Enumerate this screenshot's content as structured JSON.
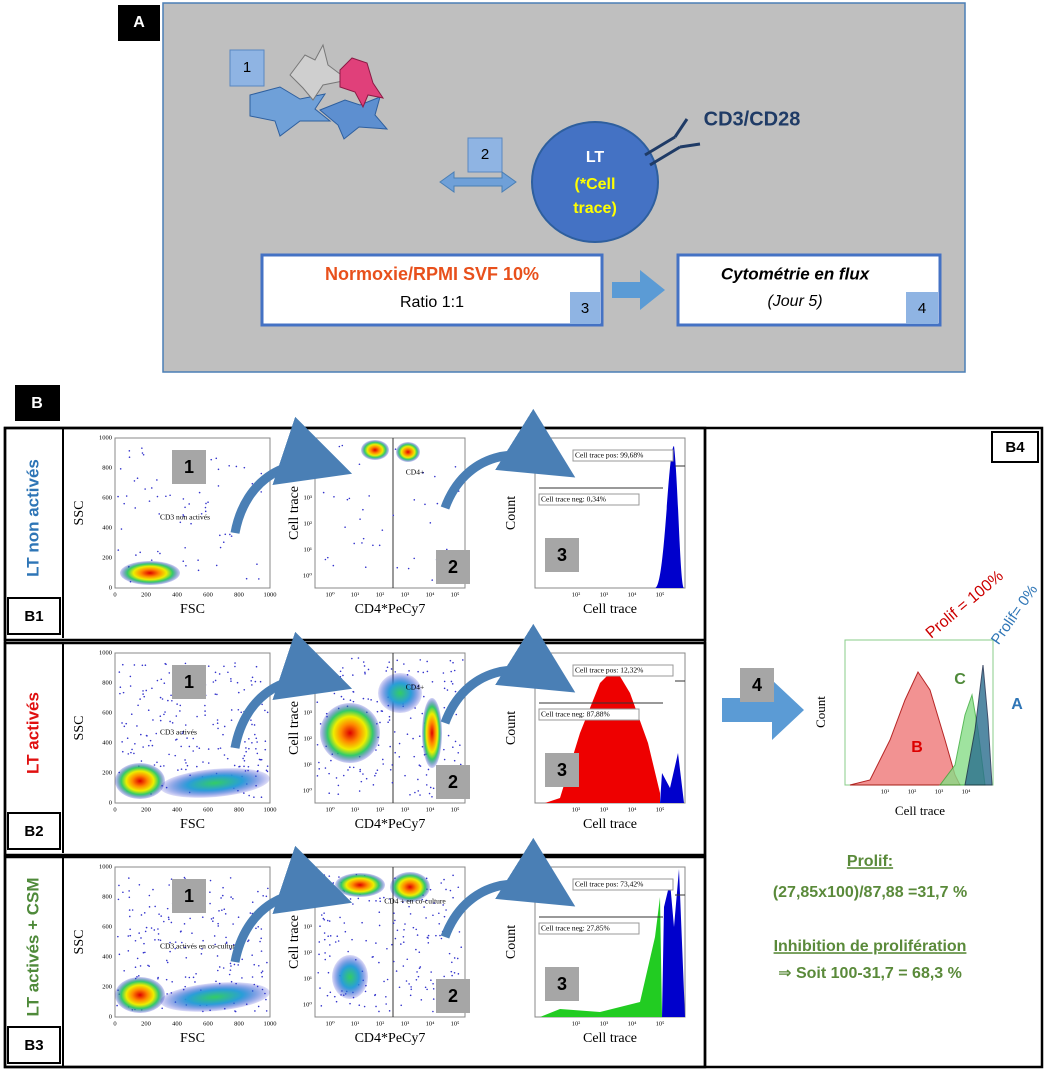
{
  "panel_a": {
    "label": "A",
    "steps": [
      "1",
      "2",
      "3",
      "4"
    ],
    "lt_label": "LT",
    "cell_trace": "(*Cell",
    "cell_trace_2": "trace)",
    "receptor": "CD3/CD28",
    "condition_title": "Normoxie/RPMI SVF 10%",
    "condition_ratio": "Ratio 1:1",
    "readout_title": "Cytométrie en flux",
    "readout_day": "(Jour 5)"
  },
  "panel_b": {
    "label": "B",
    "axes": {
      "ssc": "SSC",
      "fsc": "FSC",
      "cell_trace": "Cell trace",
      "cd4": "CD4*PeCy7",
      "count": "Count"
    },
    "linear_ticks": [
      "0",
      "200",
      "400",
      "600",
      "800",
      "1000"
    ],
    "log_ticks": [
      "10⁰",
      "10¹",
      "10²",
      "10³",
      "10⁴",
      "10⁵"
    ],
    "steps": [
      "1",
      "2",
      "3",
      "4"
    ],
    "rows": [
      {
        "label": "LT non activés",
        "tag": "B1",
        "color": "#2e75b6",
        "gate1": "CD3 non activés",
        "gate2": "CD4+",
        "pos": "Cell trace pos: 99,68%",
        "neg": "Cell trace neg: 0,34%"
      },
      {
        "label": "LT activés",
        "tag": "B2",
        "color": "#e01010",
        "gate1": "CD3 activés",
        "gate2": "CD4+",
        "pos": "Cell trace pos: 12,32%",
        "neg": "Cell trace neg: 87,88%"
      },
      {
        "label": "LT activés + CSM",
        "tag": "B3",
        "color": "#4f8a3a",
        "gate1": "CD3 activés en co-culture",
        "gate2": "CD4 + en co-culture",
        "pos": "Cell trace pos: 73,42%",
        "neg": "Cell trace neg: 27,85%"
      }
    ],
    "b4": {
      "tag": "B4",
      "prolif_100": "Prolif = 100%",
      "prolif_0": "Prolif= 0%",
      "curve_a": "A",
      "curve_b": "B",
      "curve_c": "C",
      "x_label": "Cell trace",
      "y_label": "Count",
      "prolif_title": "Prolif:",
      "prolif_formula": "(27,85x100)/87,88 =31,7 %",
      "inhibition_title": "Inhibition de prolifération",
      "inhibition_result": "⇒ Soit 100-31,7 = 68,3 %"
    }
  }
}
